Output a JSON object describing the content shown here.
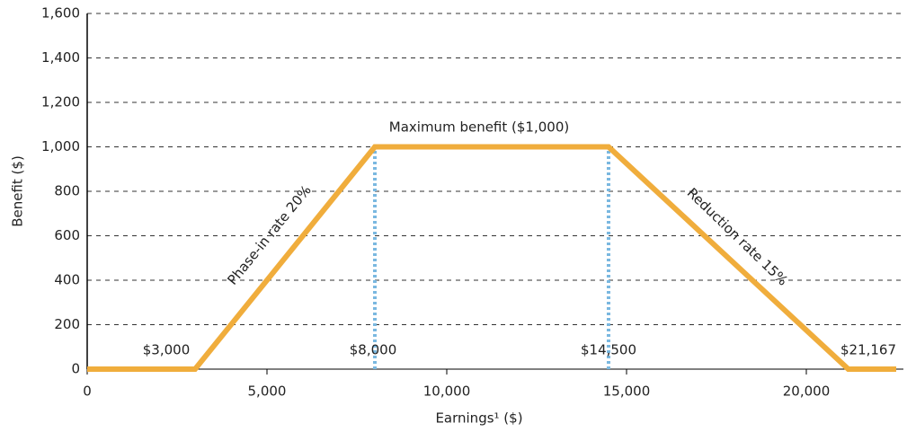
{
  "chart_data": {
    "type": "line",
    "x_label": "Earnings¹ ($)",
    "y_label": "Benefit ($)",
    "x": [
      0,
      3000,
      8000,
      14500,
      21167,
      22500
    ],
    "series": [
      {
        "name": "Benefit",
        "color": "#f0ad3c",
        "values": [
          0,
          0,
          1000,
          1000,
          0,
          0
        ]
      }
    ],
    "reference_lines": {
      "x": [
        8000,
        14500
      ],
      "color": "#7ab8e0"
    },
    "annotations": [
      "$3,000",
      "$8,000",
      "$14,500",
      "$21,167",
      "Maximum benefit ($1,000)",
      "Phase-in rate 20%",
      "Reduction rate 15%"
    ],
    "xlim": [
      0,
      22800
    ],
    "ylim": [
      0,
      1600
    ],
    "xticks": [
      0,
      {
        "value": 5000,
        "label": "5,000"
      },
      {
        "value": 10000,
        "label": "10,000"
      },
      {
        "value": 15000,
        "label": "15,000"
      },
      {
        "value": 20000,
        "label": "20,000"
      }
    ],
    "yticks": [
      0,
      200,
      400,
      600,
      800,
      {
        "value": 1000,
        "label": "1,000"
      },
      {
        "value": 1200,
        "label": "1,200"
      },
      {
        "value": 1400,
        "label": "1,400"
      },
      {
        "value": 1600,
        "label": "1,600"
      }
    ],
    "grid": true
  }
}
